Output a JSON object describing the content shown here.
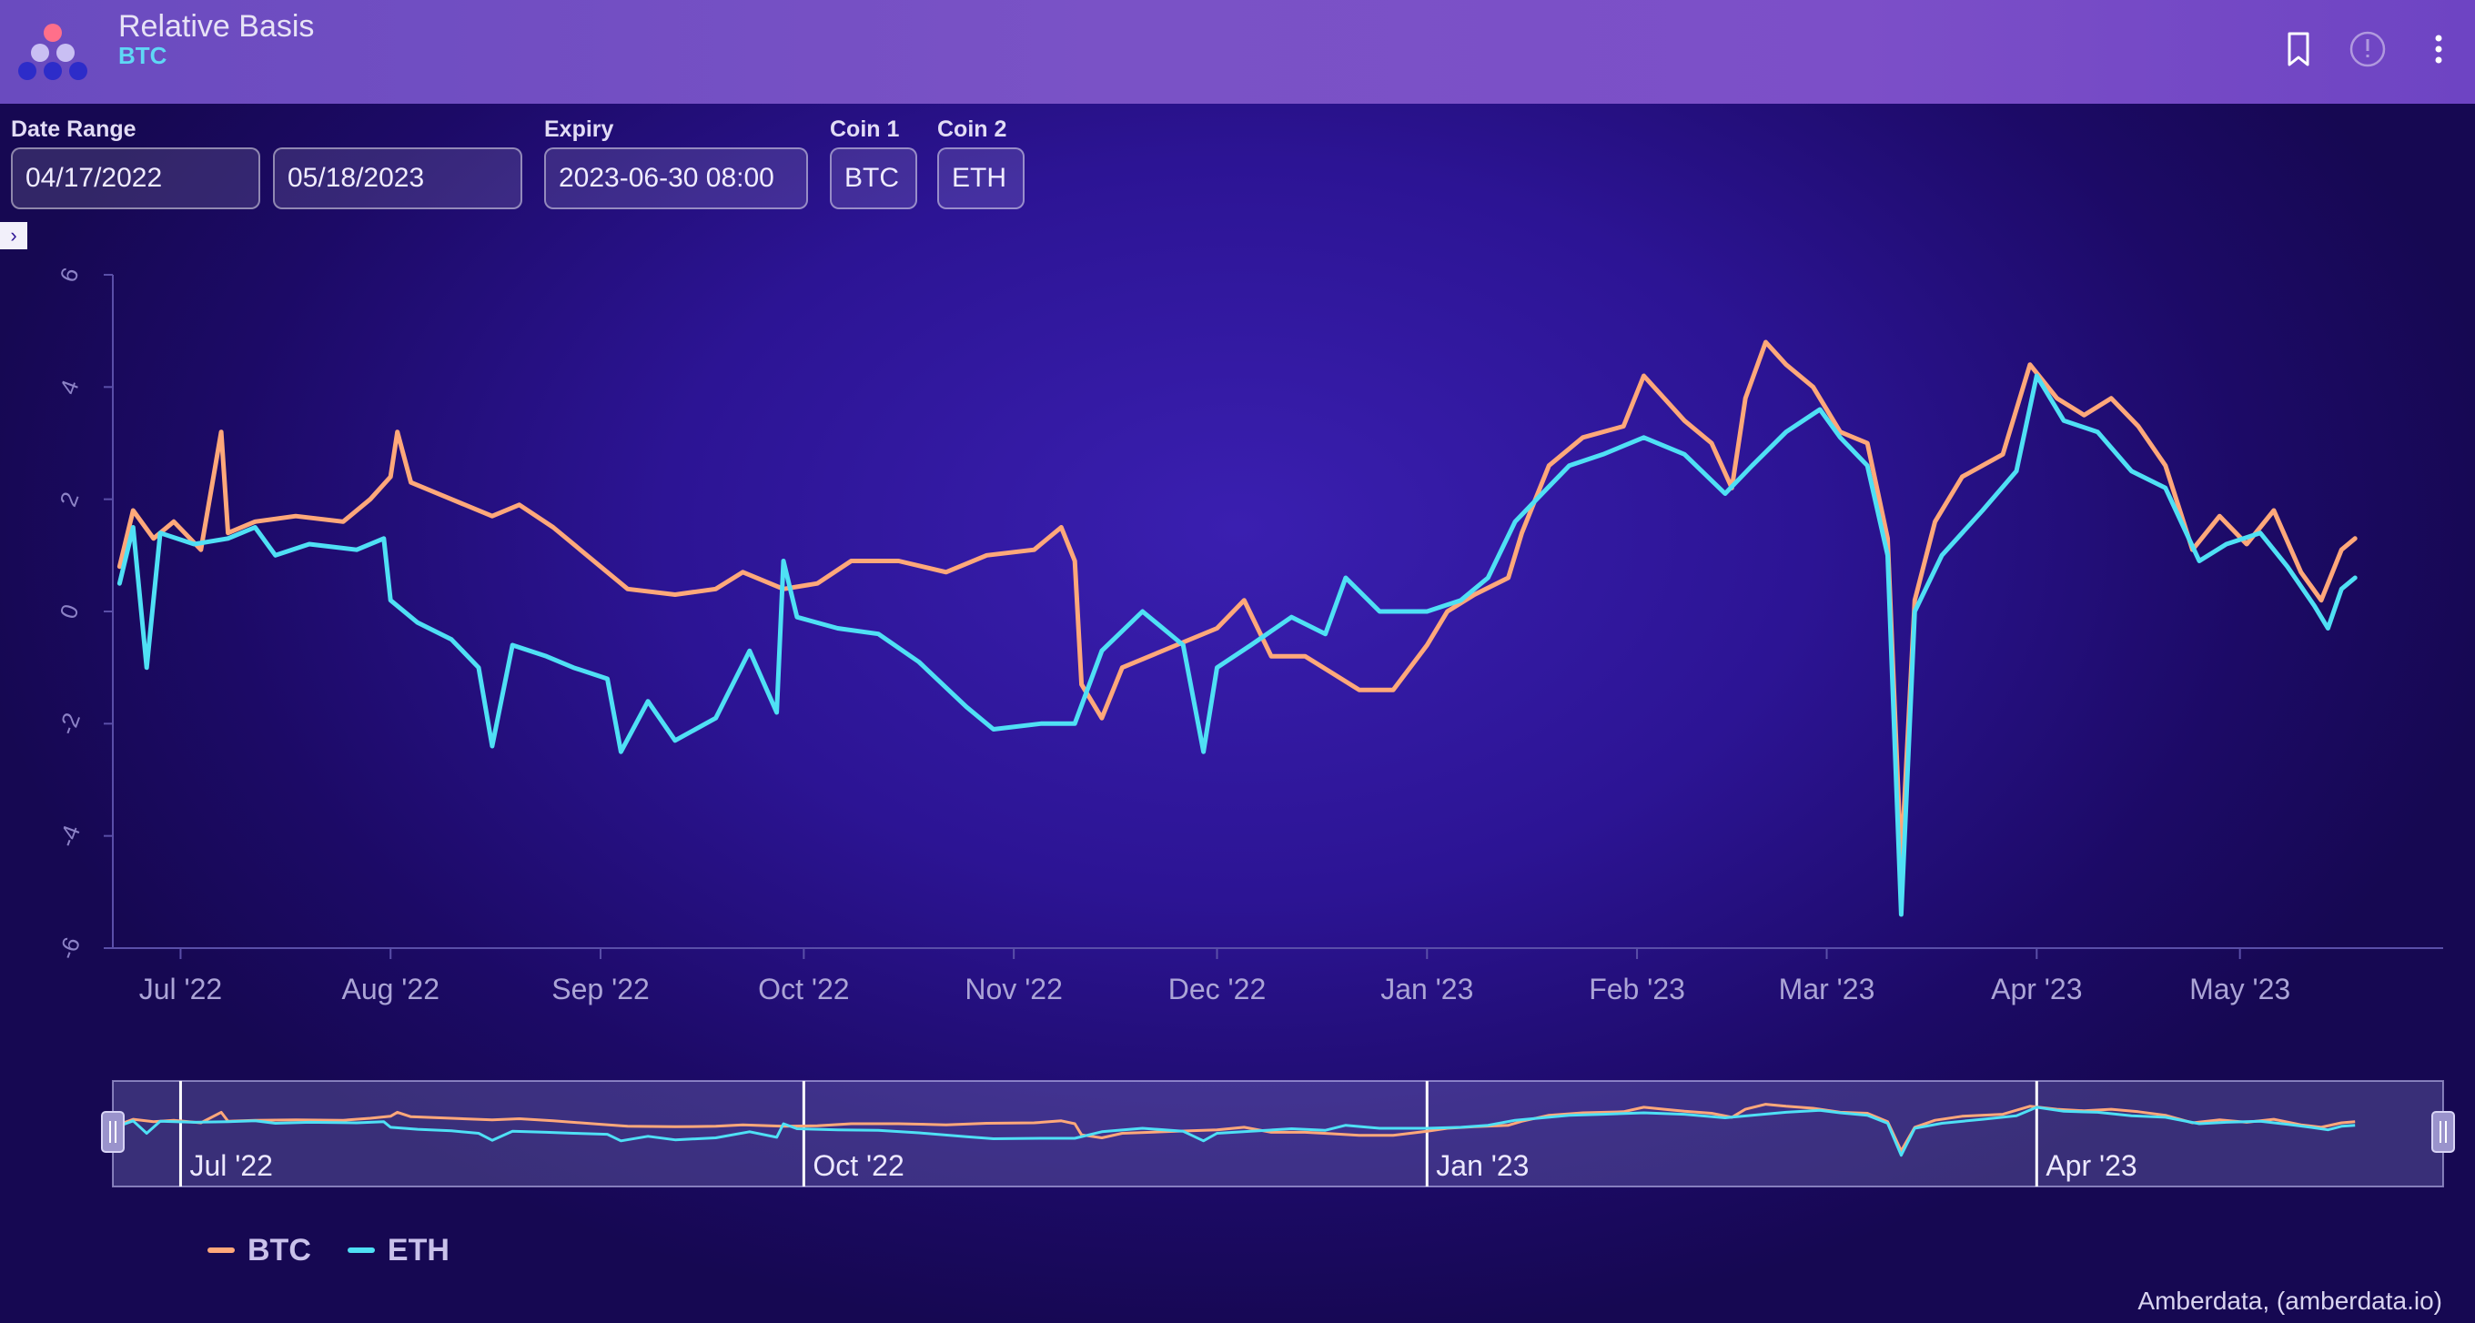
{
  "app": {
    "title": "Relative Basis",
    "subtitle": "BTC"
  },
  "header_icons": [
    "logo-icon",
    "bookmark-icon",
    "alert-icon",
    "more-vertical-icon"
  ],
  "filters": {
    "date_range_label": "Date Range",
    "date_start": "04/17/2022",
    "date_end": "05/18/2023",
    "expiry_label": "Expiry",
    "expiry_value": "2023-06-30 08:00",
    "coin1_label": "Coin 1",
    "coin1_value": "BTC",
    "coin2_label": "Coin 2",
    "coin2_value": "ETH"
  },
  "panel_toggle": "›",
  "colors": {
    "btc": "#ffa87a",
    "eth": "#4fe0f5",
    "background": "#2c1494",
    "header": "#7450c4"
  },
  "chart_data": {
    "type": "line",
    "title": "",
    "xlabel": "",
    "ylabel": "",
    "ylim": [
      -6,
      6
    ],
    "y_ticks": [
      6,
      4,
      2,
      0,
      -2,
      -4,
      -6
    ],
    "x_ticks": [
      {
        "label": "Jul '22",
        "date": "2022-07-01"
      },
      {
        "label": "Aug '22",
        "date": "2022-08-01"
      },
      {
        "label": "Sep '22",
        "date": "2022-09-01"
      },
      {
        "label": "Oct '22",
        "date": "2022-10-01"
      },
      {
        "label": "Nov '22",
        "date": "2022-11-01"
      },
      {
        "label": "Dec '22",
        "date": "2022-12-01"
      },
      {
        "label": "Jan '23",
        "date": "2023-01-01"
      },
      {
        "label": "Feb '23",
        "date": "2023-02-01"
      },
      {
        "label": "Mar '23",
        "date": "2023-03-01"
      },
      {
        "label": "Apr '23",
        "date": "2023-04-01"
      },
      {
        "label": "May '23",
        "date": "2023-05-01"
      }
    ],
    "xlim": [
      "2022-06-21",
      "2023-05-31"
    ],
    "navigator_ticks": [
      "Jul '22",
      "Oct '22",
      "Jan '23",
      "Apr '23"
    ],
    "legend_position": "bottom-left",
    "grid": false,
    "series": [
      {
        "name": "BTC",
        "color": "#ffa87a",
        "points": [
          [
            "2022-06-22",
            0.8
          ],
          [
            "2022-06-24",
            1.8
          ],
          [
            "2022-06-27",
            1.3
          ],
          [
            "2022-06-30",
            1.6
          ],
          [
            "2022-07-04",
            1.1
          ],
          [
            "2022-07-07",
            3.2
          ],
          [
            "2022-07-08",
            1.4
          ],
          [
            "2022-07-12",
            1.6
          ],
          [
            "2022-07-18",
            1.7
          ],
          [
            "2022-07-25",
            1.6
          ],
          [
            "2022-07-29",
            2.0
          ],
          [
            "2022-08-01",
            2.4
          ],
          [
            "2022-08-02",
            3.2
          ],
          [
            "2022-08-04",
            2.3
          ],
          [
            "2022-08-10",
            2.0
          ],
          [
            "2022-08-16",
            1.7
          ],
          [
            "2022-08-20",
            1.9
          ],
          [
            "2022-08-25",
            1.5
          ],
          [
            "2022-09-01",
            0.8
          ],
          [
            "2022-09-05",
            0.4
          ],
          [
            "2022-09-12",
            0.3
          ],
          [
            "2022-09-18",
            0.4
          ],
          [
            "2022-09-22",
            0.7
          ],
          [
            "2022-09-28",
            0.4
          ],
          [
            "2022-10-03",
            0.5
          ],
          [
            "2022-10-08",
            0.9
          ],
          [
            "2022-10-15",
            0.9
          ],
          [
            "2022-10-22",
            0.7
          ],
          [
            "2022-10-28",
            1.0
          ],
          [
            "2022-11-04",
            1.1
          ],
          [
            "2022-11-08",
            1.5
          ],
          [
            "2022-11-10",
            0.9
          ],
          [
            "2022-11-11",
            -1.3
          ],
          [
            "2022-11-14",
            -1.9
          ],
          [
            "2022-11-17",
            -1.0
          ],
          [
            "2022-11-25",
            -0.6
          ],
          [
            "2022-12-01",
            -0.3
          ],
          [
            "2022-12-05",
            0.2
          ],
          [
            "2022-12-09",
            -0.8
          ],
          [
            "2022-12-14",
            -0.8
          ],
          [
            "2022-12-18",
            -1.1
          ],
          [
            "2022-12-22",
            -1.4
          ],
          [
            "2022-12-27",
            -1.4
          ],
          [
            "2023-01-01",
            -0.6
          ],
          [
            "2023-01-04",
            0.0
          ],
          [
            "2023-01-08",
            0.3
          ],
          [
            "2023-01-13",
            0.6
          ],
          [
            "2023-01-15",
            1.4
          ],
          [
            "2023-01-19",
            2.6
          ],
          [
            "2023-01-24",
            3.1
          ],
          [
            "2023-01-30",
            3.3
          ],
          [
            "2023-02-02",
            4.2
          ],
          [
            "2023-02-05",
            3.8
          ],
          [
            "2023-02-08",
            3.4
          ],
          [
            "2023-02-12",
            3.0
          ],
          [
            "2023-02-15",
            2.2
          ],
          [
            "2023-02-17",
            3.8
          ],
          [
            "2023-02-20",
            4.8
          ],
          [
            "2023-02-23",
            4.4
          ],
          [
            "2023-02-27",
            4.0
          ],
          [
            "2023-03-03",
            3.2
          ],
          [
            "2023-03-07",
            3.0
          ],
          [
            "2023-03-10",
            1.3
          ],
          [
            "2023-03-12",
            -4.5
          ],
          [
            "2023-03-14",
            0.2
          ],
          [
            "2023-03-17",
            1.6
          ],
          [
            "2023-03-21",
            2.4
          ],
          [
            "2023-03-27",
            2.8
          ],
          [
            "2023-03-31",
            4.4
          ],
          [
            "2023-04-04",
            3.8
          ],
          [
            "2023-04-08",
            3.5
          ],
          [
            "2023-04-12",
            3.8
          ],
          [
            "2023-04-16",
            3.3
          ],
          [
            "2023-04-20",
            2.6
          ],
          [
            "2023-04-24",
            1.1
          ],
          [
            "2023-04-28",
            1.7
          ],
          [
            "2023-05-02",
            1.2
          ],
          [
            "2023-05-06",
            1.8
          ],
          [
            "2023-05-10",
            0.7
          ],
          [
            "2023-05-13",
            0.2
          ],
          [
            "2023-05-16",
            1.1
          ],
          [
            "2023-05-18",
            1.3
          ]
        ]
      },
      {
        "name": "ETH",
        "color": "#4fe0f5",
        "points": [
          [
            "2022-06-22",
            0.5
          ],
          [
            "2022-06-24",
            1.5
          ],
          [
            "2022-06-26",
            -1.0
          ],
          [
            "2022-06-28",
            1.4
          ],
          [
            "2022-07-03",
            1.2
          ],
          [
            "2022-07-08",
            1.3
          ],
          [
            "2022-07-12",
            1.5
          ],
          [
            "2022-07-15",
            1.0
          ],
          [
            "2022-07-20",
            1.2
          ],
          [
            "2022-07-27",
            1.1
          ],
          [
            "2022-07-31",
            1.3
          ],
          [
            "2022-08-01",
            0.2
          ],
          [
            "2022-08-05",
            -0.2
          ],
          [
            "2022-08-10",
            -0.5
          ],
          [
            "2022-08-14",
            -1.0
          ],
          [
            "2022-08-16",
            -2.4
          ],
          [
            "2022-08-19",
            -0.6
          ],
          [
            "2022-08-24",
            -0.8
          ],
          [
            "2022-08-28",
            -1.0
          ],
          [
            "2022-09-02",
            -1.2
          ],
          [
            "2022-09-04",
            -2.5
          ],
          [
            "2022-09-08",
            -1.6
          ],
          [
            "2022-09-12",
            -2.3
          ],
          [
            "2022-09-18",
            -1.9
          ],
          [
            "2022-09-23",
            -0.7
          ],
          [
            "2022-09-27",
            -1.8
          ],
          [
            "2022-09-28",
            0.9
          ],
          [
            "2022-09-30",
            -0.1
          ],
          [
            "2022-10-06",
            -0.3
          ],
          [
            "2022-10-12",
            -0.4
          ],
          [
            "2022-10-18",
            -0.9
          ],
          [
            "2022-10-25",
            -1.7
          ],
          [
            "2022-10-29",
            -2.1
          ],
          [
            "2022-11-05",
            -2.0
          ],
          [
            "2022-11-10",
            -2.0
          ],
          [
            "2022-11-14",
            -0.7
          ],
          [
            "2022-11-20",
            0.0
          ],
          [
            "2022-11-26",
            -0.6
          ],
          [
            "2022-11-29",
            -2.5
          ],
          [
            "2022-12-01",
            -1.0
          ],
          [
            "2022-12-06",
            -0.6
          ],
          [
            "2022-12-12",
            -0.1
          ],
          [
            "2022-12-17",
            -0.4
          ],
          [
            "2022-12-20",
            0.6
          ],
          [
            "2022-12-25",
            0.0
          ],
          [
            "2023-01-01",
            0.0
          ],
          [
            "2023-01-06",
            0.2
          ],
          [
            "2023-01-10",
            0.6
          ],
          [
            "2023-01-14",
            1.6
          ],
          [
            "2023-01-18",
            2.1
          ],
          [
            "2023-01-22",
            2.6
          ],
          [
            "2023-01-27",
            2.8
          ],
          [
            "2023-02-02",
            3.1
          ],
          [
            "2023-02-08",
            2.8
          ],
          [
            "2023-02-14",
            2.1
          ],
          [
            "2023-02-18",
            2.6
          ],
          [
            "2023-02-23",
            3.2
          ],
          [
            "2023-02-28",
            3.6
          ],
          [
            "2023-03-03",
            3.1
          ],
          [
            "2023-03-07",
            2.6
          ],
          [
            "2023-03-10",
            1.0
          ],
          [
            "2023-03-12",
            -5.4
          ],
          [
            "2023-03-14",
            0.0
          ],
          [
            "2023-03-18",
            1.0
          ],
          [
            "2023-03-24",
            1.8
          ],
          [
            "2023-03-29",
            2.5
          ],
          [
            "2023-04-01",
            4.2
          ],
          [
            "2023-04-05",
            3.4
          ],
          [
            "2023-04-10",
            3.2
          ],
          [
            "2023-04-15",
            2.5
          ],
          [
            "2023-04-20",
            2.2
          ],
          [
            "2023-04-25",
            0.9
          ],
          [
            "2023-04-29",
            1.2
          ],
          [
            "2023-05-04",
            1.4
          ],
          [
            "2023-05-08",
            0.8
          ],
          [
            "2023-05-12",
            0.1
          ],
          [
            "2023-05-14",
            -0.3
          ],
          [
            "2023-05-16",
            0.4
          ],
          [
            "2023-05-18",
            0.6
          ]
        ]
      }
    ]
  },
  "credit": "Amberdata, (amberdata.io)"
}
